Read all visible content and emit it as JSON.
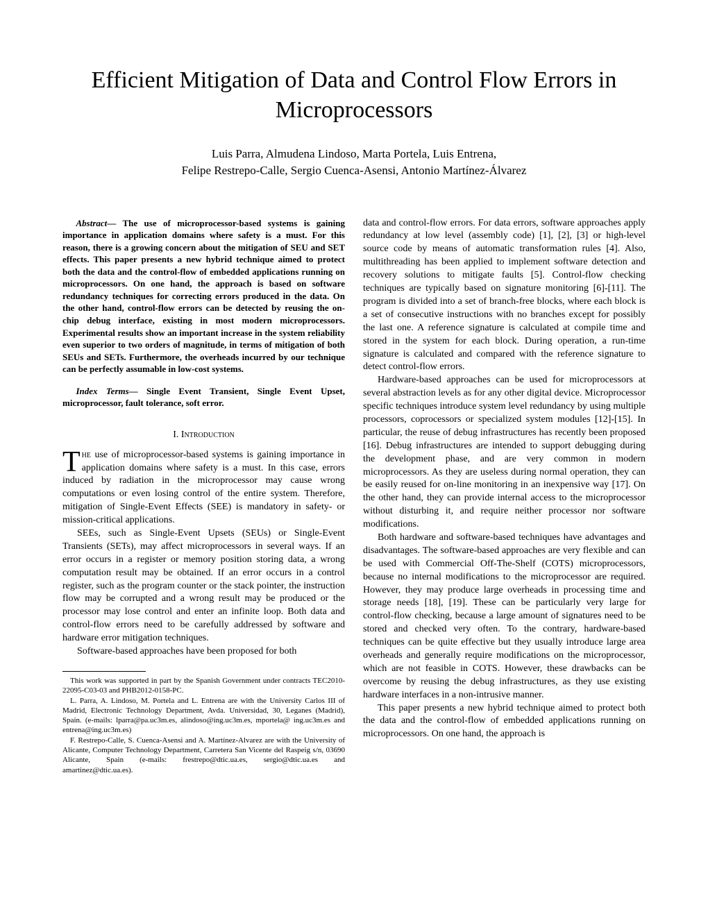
{
  "title": "Efficient Mitigation of Data and Control Flow Errors in Microprocessors",
  "authors_line1": "Luis Parra, Almudena Lindoso, Marta Portela, Luis Entrena,",
  "authors_line2": "Felipe Restrepo-Calle, Sergio Cuenca-Asensi, Antonio Martínez-Álvarez",
  "abstract": {
    "lead": "Abstract",
    "sep": "— ",
    "text": "The use of microprocessor-based systems is gaining importance in application domains where safety is a must. For this reason, there is a growing concern about the mitigation of SEU and SET effects. This paper presents a new hybrid technique aimed to protect both the data and the control-flow of embedded applications running on microprocessors. On one hand, the approach is based on software redundancy techniques for correcting errors produced in the data. On the other hand, control-flow errors can be detected by reusing the on-chip debug interface, existing in most modern microprocessors. Experimental results show an important increase in the system reliability even superior to two orders of magnitude, in terms of mitigation of both SEUs and SETs. Furthermore, the overheads incurred by our technique can be perfectly assumable in low-cost systems."
  },
  "index_terms": {
    "lead": "Index Terms",
    "sep": "— ",
    "text": "Single Event Transient, Single Event Upset, microprocessor, fault tolerance, soft error."
  },
  "section1_heading": "I.   Introduction",
  "p1_dropcap": "T",
  "p1_smallcaps": "he",
  "p1_rest": " use of microprocessor-based systems is gaining importance in application domains where safety is a must. In this case, errors induced by radiation in the microprocessor may cause wrong computations or even losing control of the entire system. Therefore, mitigation of Single-Event Effects (SEE) is mandatory in safety- or mission-critical applications.",
  "p2": "SEEs, such as Single-Event Upsets (SEUs) or Single-Event Transients (SETs), may affect microprocessors in several ways. If an error occurs in a register or memory position storing data, a wrong computation result may be obtained. If an error occurs in a control register, such as the program counter or the stack pointer, the instruction flow may be corrupted and a wrong result may be produced or the processor may lose control and enter an infinite loop. Both data and control-flow errors need to be carefully addressed by software and hardware error mitigation techniques.",
  "p3": "Software-based approaches have been proposed for both",
  "fn1": "This work was supported in part by the Spanish Government under contracts TEC2010-22095-C03-03 and PHB2012-0158-PC.",
  "fn2": "L. Parra, A. Lindoso, M. Portela and L. Entrena are with the University Carlos III of Madrid, Electronic Technology Department, Avda. Universidad, 30, Leganes (Madrid), Spain. (e-mails: lparra@pa.uc3m.es, alindoso@ing.uc3m.es, mportela@ ing.uc3m.es and entrena@ing.uc3m.es)",
  "fn3": "F. Restrepo-Calle, S. Cuenca-Asensi and A. Martínez-Alvarez are with the University of Alicante, Computer Technology Department, Carretera San Vicente del Raspeig s/n, 03690 Alicante, Spain (e-mails: frestrepo@dtic.ua.es, sergio@dtic.ua.es and amartinez@dtic.ua.es).",
  "r1": "data and control-flow errors. For data errors, software approaches apply redundancy at low level (assembly code) [1], [2], [3] or high-level source code by means of automatic transformation rules [4]. Also, multithreading has been applied to implement software detection and recovery solutions to mitigate faults [5]. Control-flow checking techniques are typically based on signature monitoring [6]-[11]. The program is divided into a set of branch-free blocks, where each block is a set of consecutive instructions with no branches except for possibly the last one. A reference signature is calculated at compile time and stored in the system for each block. During operation, a run-time signature is calculated and compared with the reference signature to detect control-flow errors.",
  "r2": "Hardware-based approaches can be used for microprocessors at several abstraction levels as for any other digital device. Microprocessor specific techniques introduce system level redundancy by using multiple processors, coprocessors or specialized system modules [12]-[15]. In particular, the reuse of debug infrastructures has recently been proposed [16]. Debug infrastructures are intended to support debugging during the development phase, and are very common in modern microprocessors. As they are useless during normal operation, they can be easily reused for on-line monitoring in an inexpensive way [17]. On the other hand, they can provide internal access to the microprocessor without disturbing it, and require neither processor nor software modifications.",
  "r3": "Both hardware and software-based techniques have advantages and disadvantages. The software-based approaches are very flexible and can be used with Commercial Off-The-Shelf (COTS) microprocessors, because no internal modifications to the microprocessor are required. However, they may produce large overheads in processing time and storage needs [18], [19]. These can be particularly very large for control-flow checking, because a large amount of signatures need to be stored and checked very often. To the contrary, hardware-based techniques can be quite effective but they usually introduce large area overheads and generally require modifications on the microprocessor, which are not feasible in COTS. However, these drawbacks can be overcome by reusing the debug infrastructures, as they use existing hardware interfaces in a non-intrusive manner.",
  "r4": "This paper presents a new hybrid technique aimed to protect both the data and the control-flow of embedded applications running on microprocessors. On one hand, the approach is"
}
